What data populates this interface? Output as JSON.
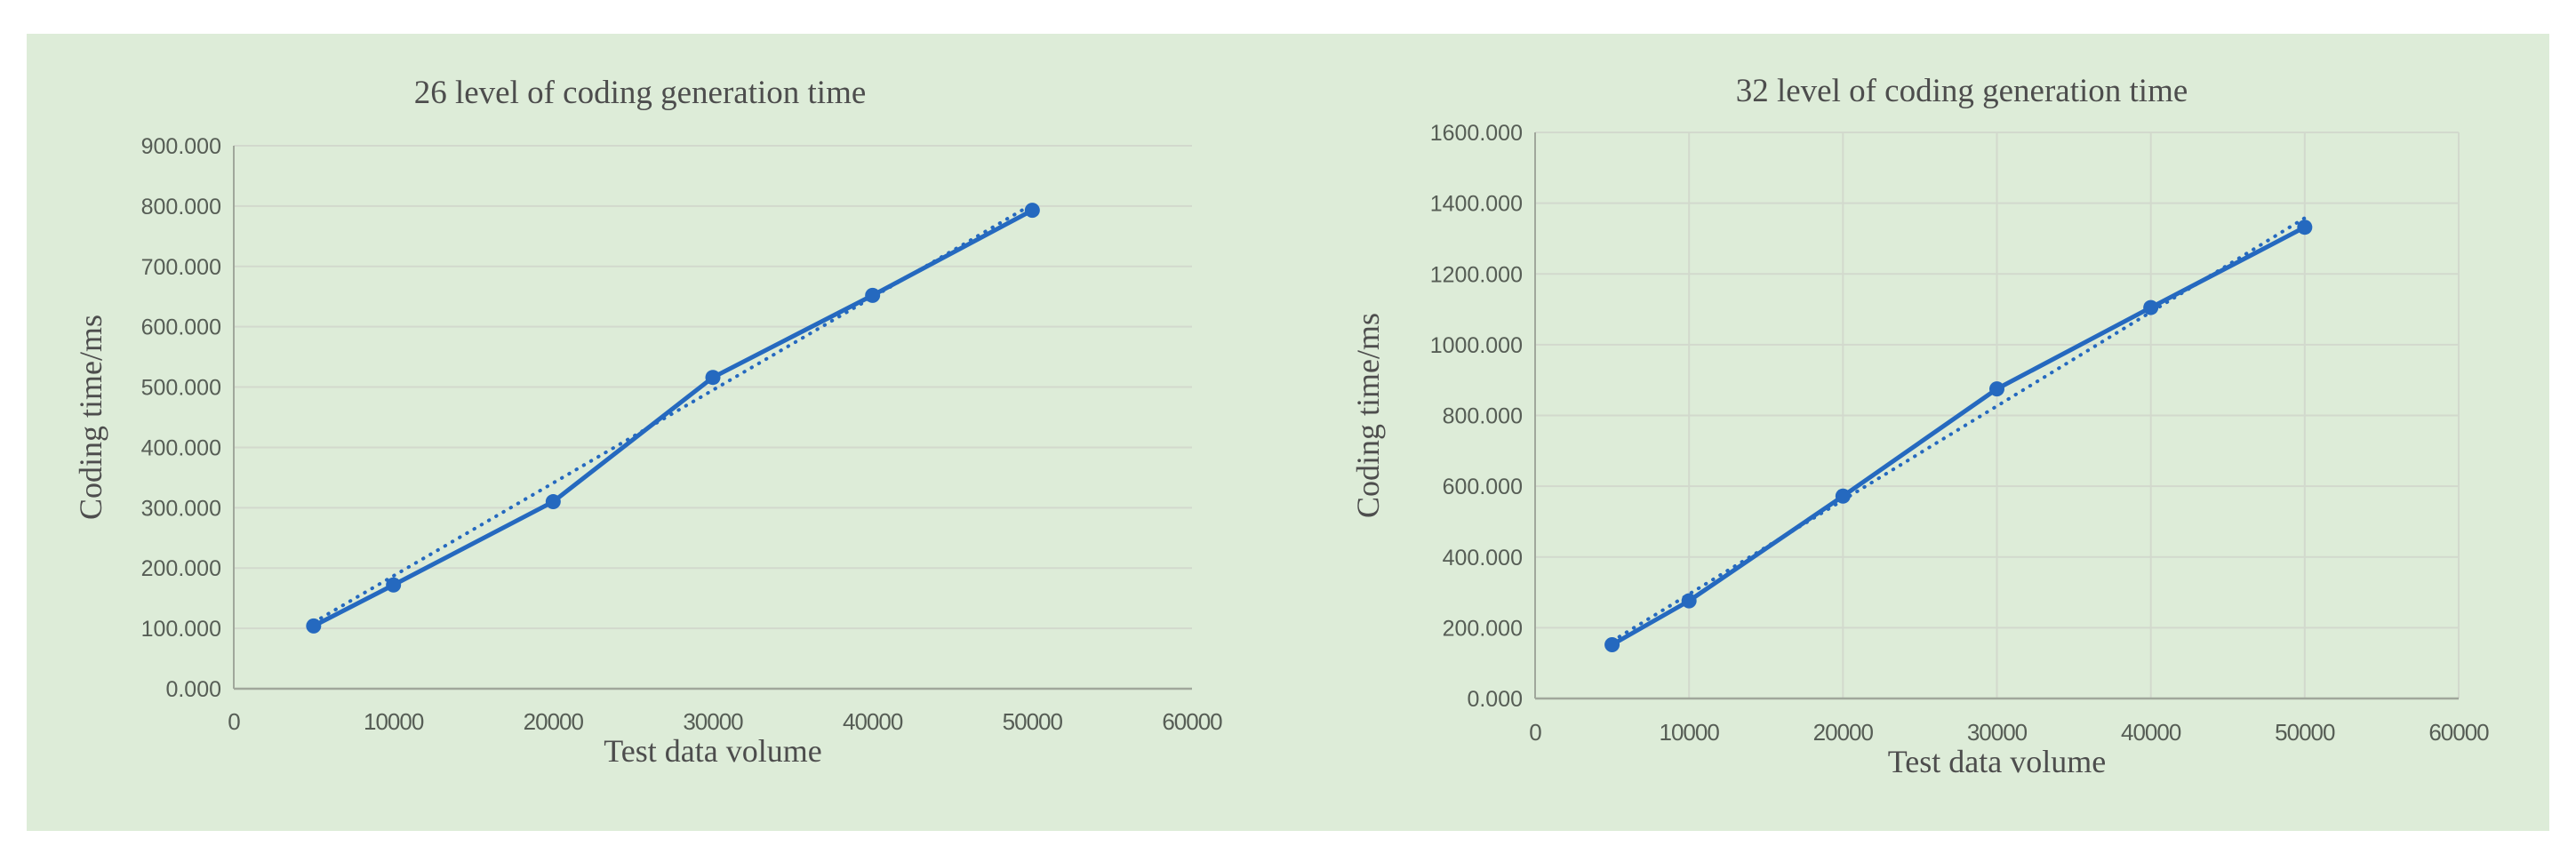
{
  "page": {
    "background_color": "#ffffff",
    "panel_color": "#ddecd8",
    "grid_color": "#d2d9cd",
    "axis_color": "#a0a79b",
    "title_color": "#4d4d4d",
    "tick_color": "#565d55",
    "series_color": "#2569bf"
  },
  "chart_data": [
    {
      "type": "line",
      "title": "26 level of coding generation time",
      "xlabel": "Test data volume",
      "ylabel": "Coding time/ms",
      "x": [
        5000,
        10000,
        20000,
        30000,
        40000,
        50000
      ],
      "series": [
        {
          "values": [
            104,
            172,
            310,
            516,
            652,
            793
          ]
        }
      ],
      "trendline": {
        "style": "dotted",
        "x1": 5000,
        "y1": 110,
        "x2": 50000,
        "y2": 803
      },
      "xlim": [
        0,
        60000
      ],
      "ylim": [
        0,
        900
      ],
      "x_tick_labels": [
        "0",
        "10000",
        "20000",
        "30000",
        "40000",
        "50000",
        "60000"
      ],
      "x_tick_values": [
        0,
        10000,
        20000,
        30000,
        40000,
        50000,
        60000
      ],
      "y_tick_labels": [
        "0.000",
        "100.000",
        "200.000",
        "300.000",
        "400.000",
        "500.000",
        "600.000",
        "700.000",
        "800.000",
        "900.000"
      ],
      "y_tick_values": [
        0,
        100,
        200,
        300,
        400,
        500,
        600,
        700,
        800,
        900
      ],
      "grid": {
        "horizontal": true,
        "vertical": false
      },
      "legend": "none"
    },
    {
      "type": "line",
      "title": "32 level of coding generation time",
      "xlabel": "Test data volume",
      "ylabel": "Coding time/ms",
      "x": [
        5000,
        10000,
        20000,
        30000,
        40000,
        50000
      ],
      "series": [
        {
          "values": [
            152,
            276,
            572,
            875,
            1105,
            1332
          ]
        }
      ],
      "trendline": {
        "style": "dotted",
        "x1": 5000,
        "y1": 162,
        "x2": 50000,
        "y2": 1358
      },
      "xlim": [
        0,
        60000
      ],
      "ylim": [
        0,
        1600
      ],
      "x_tick_labels": [
        "0",
        "10000",
        "20000",
        "30000",
        "40000",
        "50000",
        "60000"
      ],
      "x_tick_values": [
        0,
        10000,
        20000,
        30000,
        40000,
        50000,
        60000
      ],
      "y_tick_labels": [
        "0.000",
        "200.000",
        "400.000",
        "600.000",
        "800.000",
        "1000.000",
        "1200.000",
        "1400.000",
        "1600.000"
      ],
      "y_tick_values": [
        0,
        200,
        400,
        600,
        800,
        1000,
        1200,
        1400,
        1600
      ],
      "grid": {
        "horizontal": true,
        "vertical": true
      },
      "legend": "none"
    }
  ]
}
